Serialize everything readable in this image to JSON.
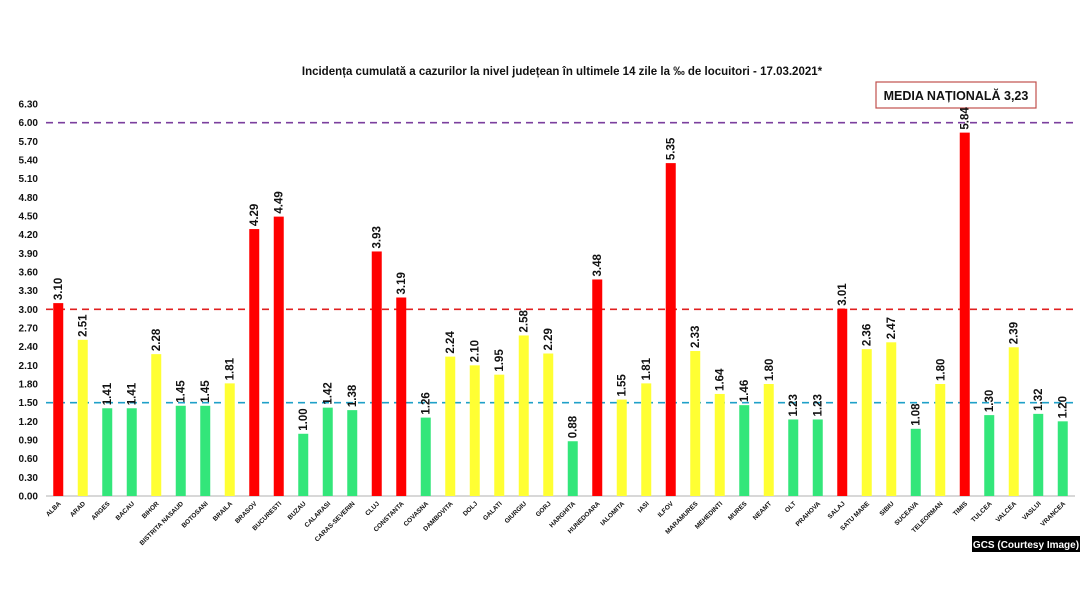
{
  "chart_data": {
    "type": "bar",
    "title": "Incidența cumulată a cazurilor la nivel județean în ultimele 14 zile   la ‰ de locuitori  - 17.03.2021*",
    "ylim": [
      0,
      6.3
    ],
    "yticks": [
      "0.00",
      "0.30",
      "0.60",
      "0.90",
      "1.20",
      "1.50",
      "1.80",
      "2.10",
      "2.40",
      "2.70",
      "3.00",
      "3.30",
      "3.60",
      "3.90",
      "4.20",
      "4.50",
      "4.80",
      "5.10",
      "5.40",
      "5.70",
      "6.00",
      "6.30"
    ],
    "categories": [
      "ALBA",
      "ARAD",
      "ARGES",
      "BACAU",
      "BIHOR",
      "BISTRITA NASAUD",
      "BOTOSANI",
      "BRAILA",
      "BRASOV",
      "BUCURESTI",
      "BUZAU",
      "CALARASI",
      "CARAS-SEVERIN",
      "CLUJ",
      "CONSTANTA",
      "COVASNA",
      "DAMBOVITA",
      "DOLJ",
      "GALATI",
      "GIURGIU",
      "GORJ",
      "HARGHITA",
      "HUNEDOARA",
      "IALOMITA",
      "IASI",
      "ILFOV",
      "MARAMURES",
      "MEHEDINTI",
      "MURES",
      "NEAMT",
      "OLT",
      "PRAHOVA",
      "SALAJ",
      "SATU MARE",
      "SIBIU",
      "SUCEAVA",
      "TELEORMAN",
      "TIMIS",
      "TULCEA",
      "VALCEA",
      "VASLUI",
      "VRANCEA"
    ],
    "values": [
      3.1,
      2.51,
      1.41,
      1.41,
      2.28,
      1.45,
      1.45,
      1.81,
      4.29,
      4.49,
      1.0,
      1.42,
      1.38,
      3.93,
      3.19,
      1.26,
      2.24,
      2.1,
      1.95,
      2.58,
      2.29,
      0.88,
      3.48,
      1.55,
      1.81,
      5.35,
      2.33,
      1.64,
      1.46,
      1.8,
      1.23,
      1.23,
      3.01,
      2.36,
      2.47,
      1.08,
      1.8,
      5.84,
      1.3,
      2.39,
      1.32,
      1.2
    ],
    "value_labels": [
      "3.10",
      "2.51",
      "1.41",
      "1.41",
      "2.28",
      "1.45",
      "1.45",
      "1.81",
      "4.29",
      "4.49",
      "1.00",
      "1.42",
      "1.38",
      "3.93",
      "3.19",
      "1.26",
      "2.24",
      "2.10",
      "1.95",
      "2.58",
      "2.29",
      "0.88",
      "3.48",
      "1.55",
      "1.81",
      "5.35",
      "2.33",
      "1.64",
      "1.46",
      "1.80",
      "1.23",
      "1.23",
      "3.01",
      "2.36",
      "2.47",
      "1.08",
      "1.80",
      "5.84",
      "1.30",
      "2.39",
      "1.32",
      "1.20"
    ],
    "thresholds": [
      {
        "value": 6.0,
        "color": "#7b3f9e"
      },
      {
        "value": 3.0,
        "color": "#e02020"
      },
      {
        "value": 1.5,
        "color": "#1fa0c8"
      }
    ],
    "colors": {
      "red": "#ff0000",
      "yellow": "#ffff33",
      "green": "#33e67a"
    },
    "grid": false,
    "media_box": "MEDIA NAȚIONALĂ 3,23"
  },
  "credit": "GCS (Courtesy Image)"
}
